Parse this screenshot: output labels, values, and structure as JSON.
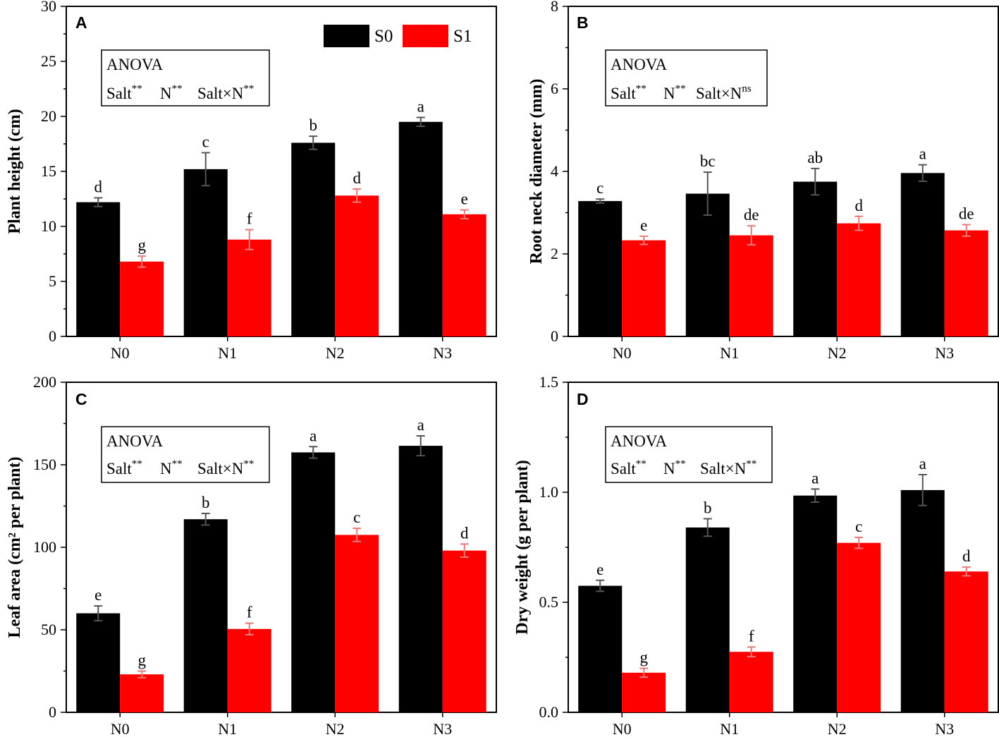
{
  "legend": {
    "series": [
      {
        "name": "S0",
        "color": "#000000"
      },
      {
        "name": "S1",
        "color": "#ff0000"
      }
    ]
  },
  "panels": [
    {
      "letter": "A",
      "anova": {
        "title": "ANOVA",
        "salt": "Salt",
        "salt_sig": "**",
        "n": "N",
        "n_sig": "**",
        "inter": "Salt×N",
        "inter_sig": "**"
      }
    },
    {
      "letter": "B",
      "anova": {
        "title": "ANOVA",
        "salt": "Salt",
        "salt_sig": "**",
        "n": "N",
        "n_sig": "**",
        "inter": "Salt×N",
        "inter_sig": "ns"
      }
    },
    {
      "letter": "C",
      "anova": {
        "title": "ANOVA",
        "salt": "Salt",
        "salt_sig": "**",
        "n": "N",
        "n_sig": "**",
        "inter": "Salt×N",
        "inter_sig": "**"
      }
    },
    {
      "letter": "D",
      "anova": {
        "title": "ANOVA",
        "salt": "Salt",
        "salt_sig": "**",
        "n": "N",
        "n_sig": "**",
        "inter": "Salt×N",
        "inter_sig": "**"
      }
    }
  ],
  "chart_data": [
    {
      "type": "bar",
      "title": "A",
      "ylabel": "Plant height (cm)",
      "categories": [
        "N0",
        "N1",
        "N2",
        "N3"
      ],
      "ylim": [
        0,
        30
      ],
      "yticks": [
        0,
        5,
        10,
        15,
        20,
        25,
        30
      ],
      "series": [
        {
          "name": "S0",
          "values": [
            12.2,
            15.2,
            17.6,
            19.5
          ],
          "errors": [
            0.4,
            1.5,
            0.6,
            0.4
          ],
          "letters": [
            "d",
            "c",
            "b",
            "a"
          ]
        },
        {
          "name": "S1",
          "values": [
            6.8,
            8.8,
            12.8,
            11.1
          ],
          "errors": [
            0.5,
            0.9,
            0.6,
            0.4
          ],
          "letters": [
            "g",
            "f",
            "d",
            "e"
          ]
        }
      ]
    },
    {
      "type": "bar",
      "title": "B",
      "ylabel": "Root neck diameter (mm)",
      "categories": [
        "N0",
        "N1",
        "N2",
        "N3"
      ],
      "ylim": [
        0,
        8
      ],
      "yticks": [
        0,
        2,
        4,
        6,
        8
      ],
      "series": [
        {
          "name": "S0",
          "values": [
            3.28,
            3.46,
            3.75,
            3.96
          ],
          "errors": [
            0.05,
            0.52,
            0.32,
            0.2
          ],
          "letters": [
            "c",
            "bc",
            "ab",
            "a"
          ]
        },
        {
          "name": "S1",
          "values": [
            2.33,
            2.45,
            2.74,
            2.57
          ],
          "errors": [
            0.1,
            0.23,
            0.17,
            0.14
          ],
          "letters": [
            "e",
            "de",
            "d",
            "de"
          ]
        }
      ]
    },
    {
      "type": "bar",
      "title": "C",
      "ylabel": "Leaf area (cm² per plant)",
      "categories": [
        "N0",
        "N1",
        "N2",
        "N3"
      ],
      "ylim": [
        0,
        200
      ],
      "yticks": [
        0,
        50,
        100,
        150,
        200
      ],
      "series": [
        {
          "name": "S0",
          "values": [
            60,
            117,
            157.5,
            161.5
          ],
          "errors": [
            4.5,
            3.5,
            3.5,
            6
          ],
          "letters": [
            "e",
            "b",
            "a",
            "a"
          ]
        },
        {
          "name": "S1",
          "values": [
            23,
            50.5,
            107.5,
            98
          ],
          "errors": [
            2,
            3.5,
            4,
            4
          ],
          "letters": [
            "g",
            "f",
            "c",
            "d"
          ]
        }
      ]
    },
    {
      "type": "bar",
      "title": "D",
      "ylabel": "Dry weight (g per plant)",
      "categories": [
        "N0",
        "N1",
        "N2",
        "N3"
      ],
      "ylim": [
        0,
        1.5
      ],
      "yticks": [
        0.0,
        0.5,
        1.0,
        1.5
      ],
      "ytick_labels": [
        "0.0",
        "0.5",
        "1.0",
        "1.5"
      ],
      "series": [
        {
          "name": "S0",
          "values": [
            0.575,
            0.84,
            0.985,
            1.01
          ],
          "errors": [
            0.025,
            0.04,
            0.03,
            0.07
          ],
          "letters": [
            "e",
            "b",
            "a",
            "a"
          ]
        },
        {
          "name": "S1",
          "values": [
            0.18,
            0.275,
            0.77,
            0.64
          ],
          "errors": [
            0.02,
            0.022,
            0.025,
            0.02
          ],
          "letters": [
            "g",
            "f",
            "c",
            "d"
          ]
        }
      ]
    }
  ]
}
